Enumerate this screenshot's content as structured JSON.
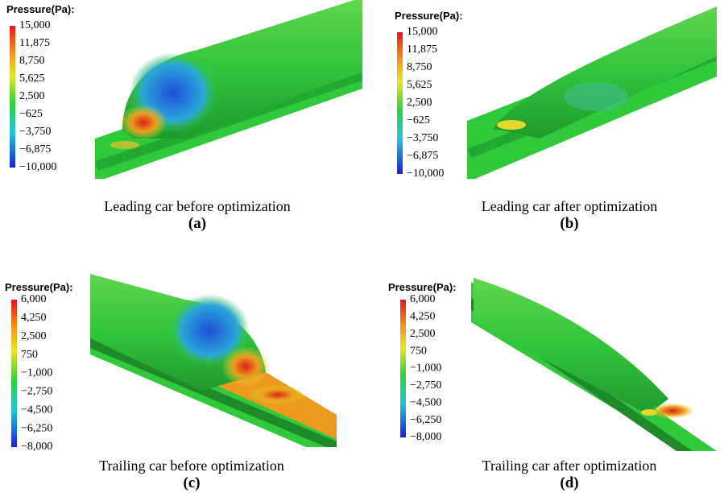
{
  "panels": [
    {
      "legend_title": "Pressure(Pa):",
      "legend_labels": [
        "15,000",
        "11,875",
        "8,750",
        "5,625",
        "2,500",
        "−625",
        "−3,750",
        "−6,875",
        "−10,000"
      ],
      "caption": "Leading car before optimization",
      "letter": "(a)"
    },
    {
      "legend_title": "Pressure(Pa):",
      "legend_labels": [
        "15,000",
        "11,875",
        "8,750",
        "5,625",
        "2,500",
        "−625",
        "−3,750",
        "−6,875",
        "−10,000"
      ],
      "caption": "Leading car after optimization",
      "letter": "(b)"
    },
    {
      "legend_title": "Pressure(Pa):",
      "legend_labels": [
        "6,000",
        "4,250",
        "2,500",
        "750",
        "−1,000",
        "−2,750",
        "−4,500",
        "−6,250",
        "−8,000"
      ],
      "caption": "Trailing car before optimization",
      "letter": "(c)"
    },
    {
      "legend_title": "Pressure(Pa):",
      "legend_labels": [
        "6,000",
        "4,250",
        "2,500",
        "750",
        "−1,000",
        "−2,750",
        "−4,500",
        "−6,250",
        "−8,000"
      ],
      "caption": "Trailing car after optimization",
      "letter": "(d)"
    }
  ]
}
